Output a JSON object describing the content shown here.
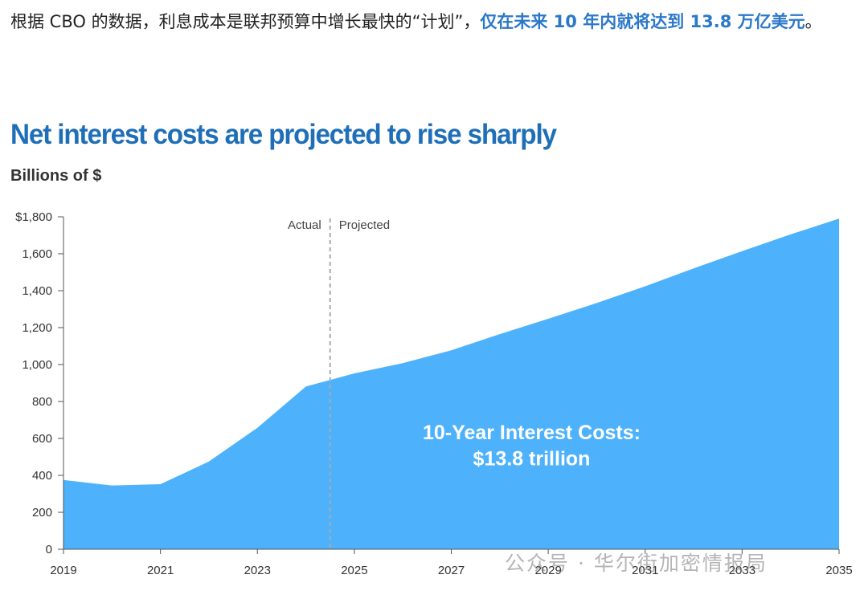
{
  "intro": {
    "text": "根据 CBO 的数据，利息成本是联邦预算中增长最快的“计划”，",
    "highlight": "仅在未来 10 年内就将达到 13.8 万亿美元",
    "end": "。"
  },
  "watermark": "公众号 · 华尔街加密情报局",
  "colors": {
    "area": "#4db2fb",
    "title": "#1f6fb8",
    "highlight": "#2b78c9",
    "divider": "#aaaaaa"
  },
  "chart_data": {
    "type": "area",
    "title": "Net interest costs are projected to rise sharply",
    "ylabel": "Billions of $",
    "ylim": [
      0,
      1800
    ],
    "xlim": [
      2019,
      2035
    ],
    "y_ticks": [
      "$1,800",
      "1,600",
      "1,400",
      "1,200",
      "1,000",
      "800",
      "600",
      "400",
      "200",
      "0"
    ],
    "y_tick_values": [
      1800,
      1600,
      1400,
      1200,
      1000,
      800,
      600,
      400,
      200,
      0
    ],
    "x_ticks": [
      "2019",
      "2021",
      "2023",
      "2025",
      "2027",
      "2029",
      "2031",
      "2033",
      "2035"
    ],
    "x_tick_values": [
      2019,
      2021,
      2023,
      2025,
      2027,
      2029,
      2031,
      2033,
      2035
    ],
    "x": [
      2019,
      2020,
      2021,
      2022,
      2023,
      2024,
      2025,
      2026,
      2027,
      2028,
      2029,
      2030,
      2031,
      2032,
      2033,
      2034,
      2035
    ],
    "values": [
      375,
      345,
      352,
      475,
      658,
      881,
      952,
      1008,
      1077,
      1165,
      1248,
      1333,
      1424,
      1521,
      1614,
      1705,
      1790
    ],
    "divider_x": 2024.5,
    "segment_labels": {
      "left": "Actual",
      "right": "Projected"
    },
    "annotation": [
      "10-Year Interest Costs:",
      "$13.8 trillion"
    ],
    "grid": false,
    "legend": "none"
  }
}
